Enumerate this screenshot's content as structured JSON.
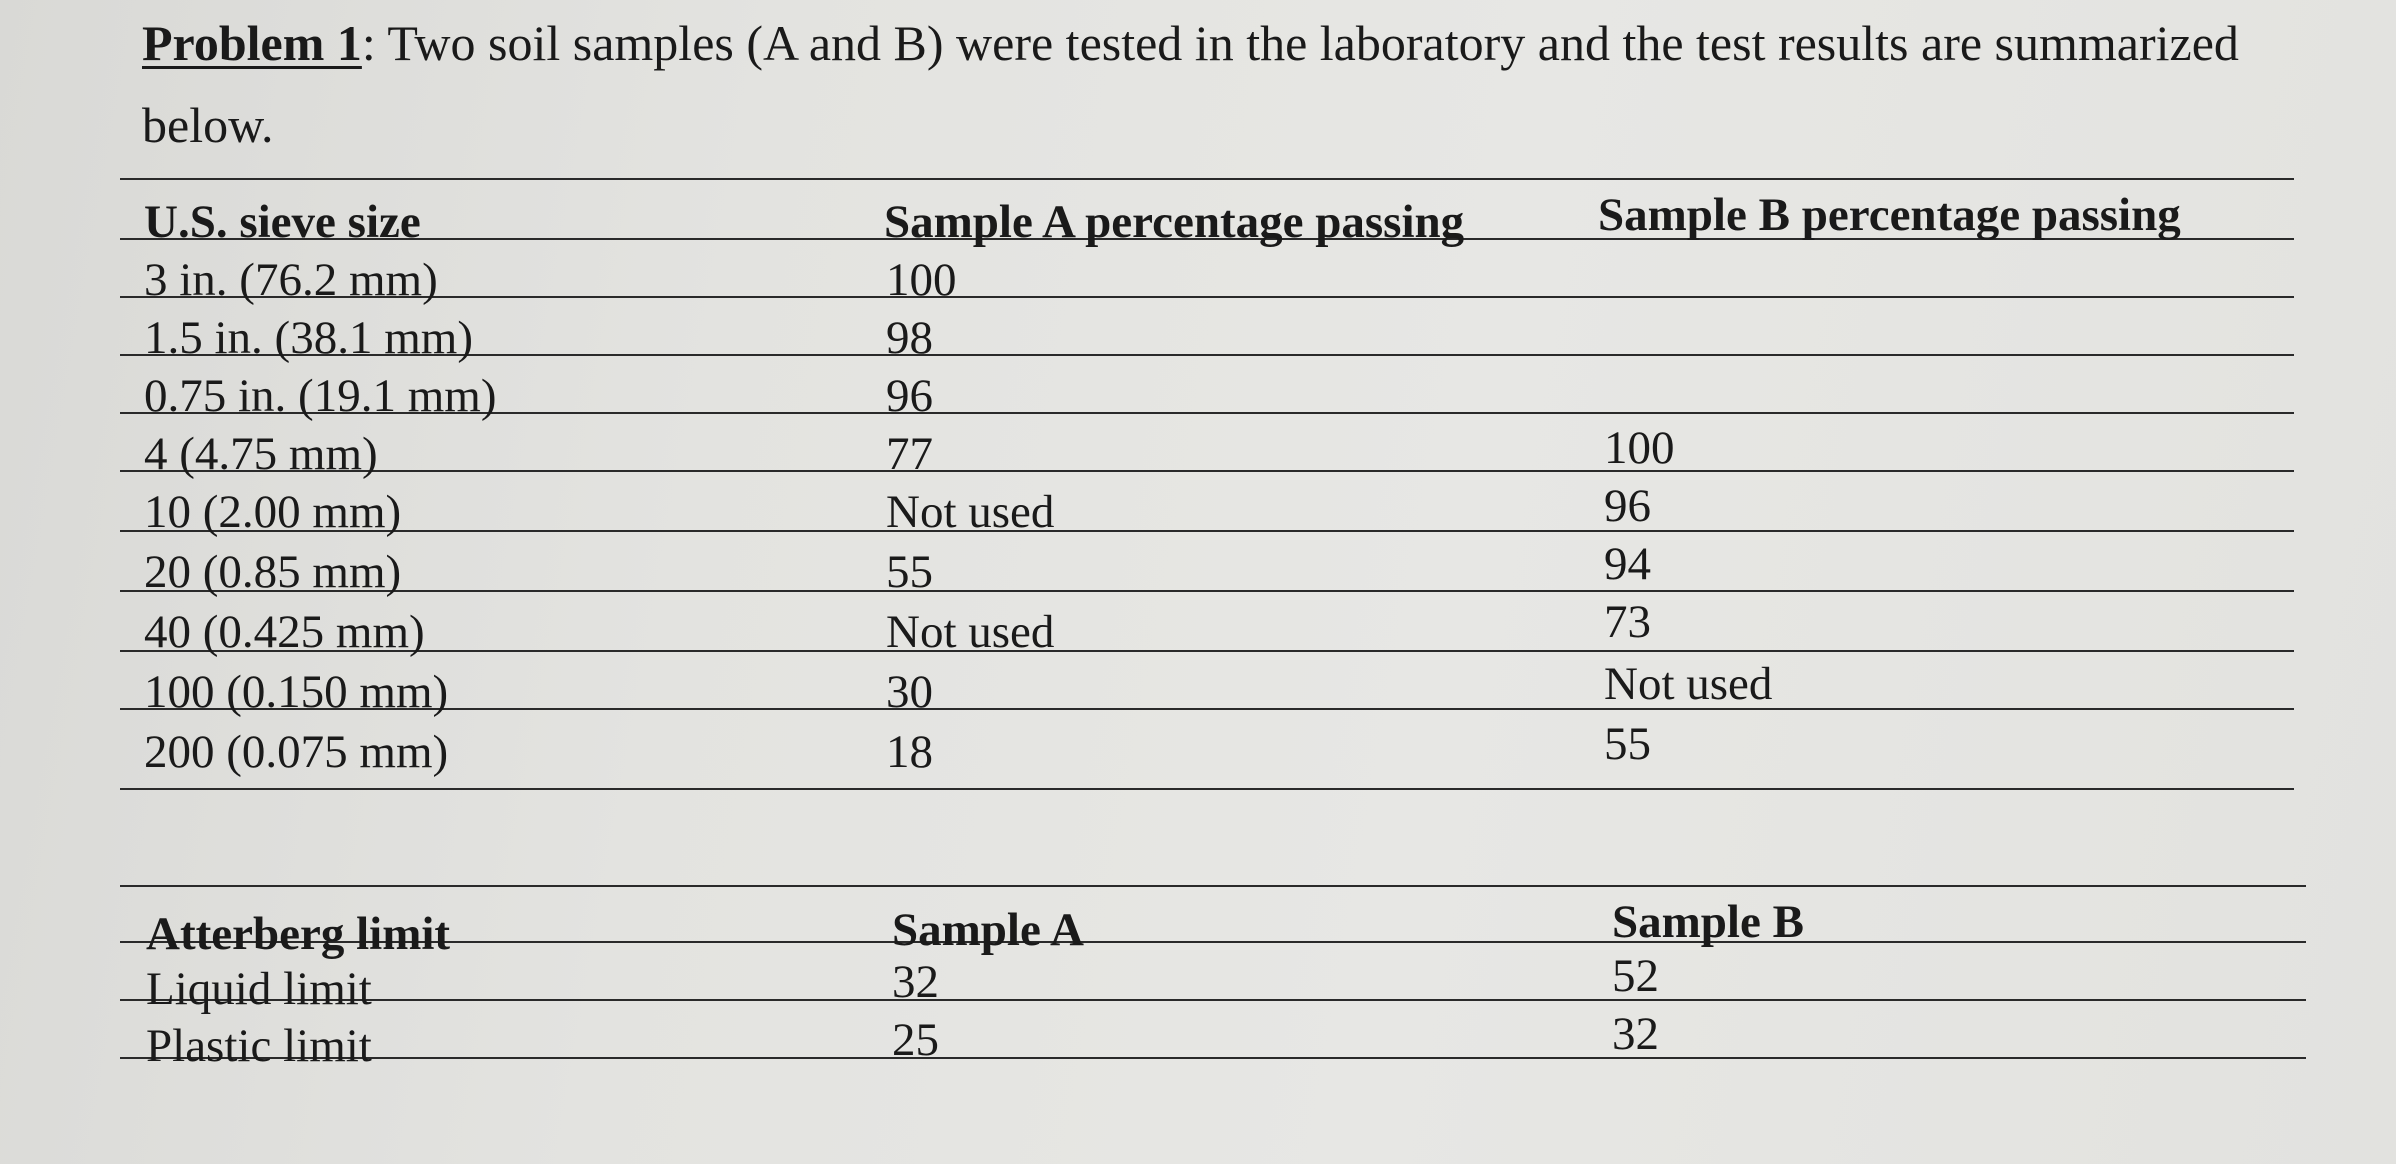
{
  "problem": {
    "label": "Problem 1",
    "text": ": Two soil samples (A and B) were tested in the laboratory and the test results are summarized below."
  },
  "sieve_table": {
    "headers": [
      "U.S. sieve size",
      "Sample A percentage passing",
      "Sample B percentage passing"
    ],
    "rows": [
      [
        "3 in. (76.2 mm)",
        "100",
        ""
      ],
      [
        "1.5 in. (38.1 mm)",
        "98",
        ""
      ],
      [
        "0.75 in. (19.1 mm)",
        "96",
        ""
      ],
      [
        "4 (4.75 mm)",
        "77",
        "100"
      ],
      [
        "10 (2.00 mm)",
        "Not used",
        "96"
      ],
      [
        "20 (0.85 mm)",
        "55",
        "94"
      ],
      [
        "40 (0.425 mm)",
        "Not used",
        "73"
      ],
      [
        "100 (0.150 mm)",
        "30",
        "Not used"
      ],
      [
        "200 (0.075 mm)",
        "18",
        "55"
      ]
    ]
  },
  "atterberg_table": {
    "headers": [
      "Atterberg limit",
      "Sample A",
      "Sample B"
    ],
    "rows": [
      [
        "Liquid limit",
        "32",
        "52"
      ],
      [
        "Plastic limit",
        "25",
        "32"
      ]
    ]
  }
}
